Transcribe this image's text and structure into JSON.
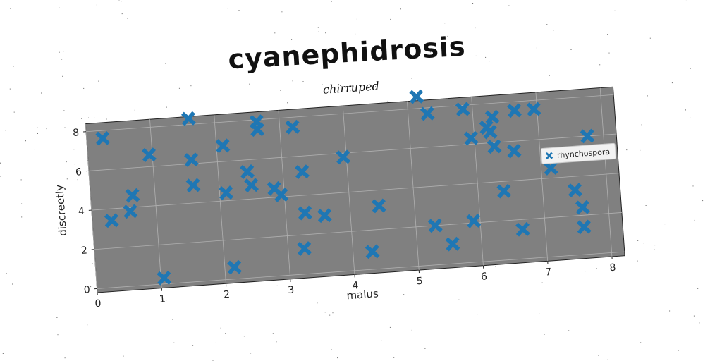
{
  "chart_data": {
    "type": "scatter",
    "title": "cyanephidrosis",
    "subtitle": "chirruped",
    "xlabel": "malus",
    "ylabel": "discreetly",
    "xlim": [
      0,
      8.2
    ],
    "ylim": [
      -0.2,
      8.4
    ],
    "xticks": [
      "0",
      "1",
      "2",
      "3",
      "4",
      "5",
      "6",
      "7",
      "8"
    ],
    "yticks": [
      "0",
      "2",
      "4",
      "6",
      "8"
    ],
    "grid": true,
    "legend_position": "right",
    "background": "#808080",
    "series": [
      {
        "name": "rhynchospora",
        "color": "#1f77b4",
        "marker": "x",
        "points": [
          [
            0.25,
            7.6
          ],
          [
            0.3,
            3.4
          ],
          [
            0.6,
            3.8
          ],
          [
            0.65,
            4.6
          ],
          [
            0.95,
            6.6
          ],
          [
            1.05,
            0.3
          ],
          [
            1.6,
            8.3
          ],
          [
            1.6,
            6.2
          ],
          [
            1.6,
            4.9
          ],
          [
            2.1,
            4.4
          ],
          [
            2.1,
            6.8
          ],
          [
            2.15,
            0.6
          ],
          [
            2.45,
            5.4
          ],
          [
            2.5,
            4.7
          ],
          [
            2.65,
            7.9
          ],
          [
            2.65,
            7.5
          ],
          [
            2.85,
            4.45
          ],
          [
            2.95,
            4.1
          ],
          [
            3.2,
            7.5
          ],
          [
            3.25,
            1.3
          ],
          [
            3.3,
            5.2
          ],
          [
            3.3,
            3.1
          ],
          [
            3.6,
            2.9
          ],
          [
            3.95,
            5.8
          ],
          [
            4.3,
            0.9
          ],
          [
            4.45,
            3.2
          ],
          [
            5.15,
            8.6
          ],
          [
            5.3,
            7.7
          ],
          [
            5.3,
            2.0
          ],
          [
            5.55,
            1.0
          ],
          [
            5.85,
            7.8
          ],
          [
            5.9,
            2.1
          ],
          [
            5.95,
            6.3
          ],
          [
            6.2,
            6.8
          ],
          [
            6.25,
            6.55
          ],
          [
            6.3,
            7.3
          ],
          [
            6.3,
            5.8
          ],
          [
            6.4,
            3.5
          ],
          [
            6.6,
            5.5
          ],
          [
            6.65,
            1.5
          ],
          [
            6.65,
            7.55
          ],
          [
            6.95,
            7.55
          ],
          [
            7.15,
            4.5
          ],
          [
            7.5,
            3.3
          ],
          [
            7.6,
            1.4
          ],
          [
            7.6,
            2.4
          ],
          [
            7.75,
            6.0
          ]
        ]
      }
    ]
  }
}
